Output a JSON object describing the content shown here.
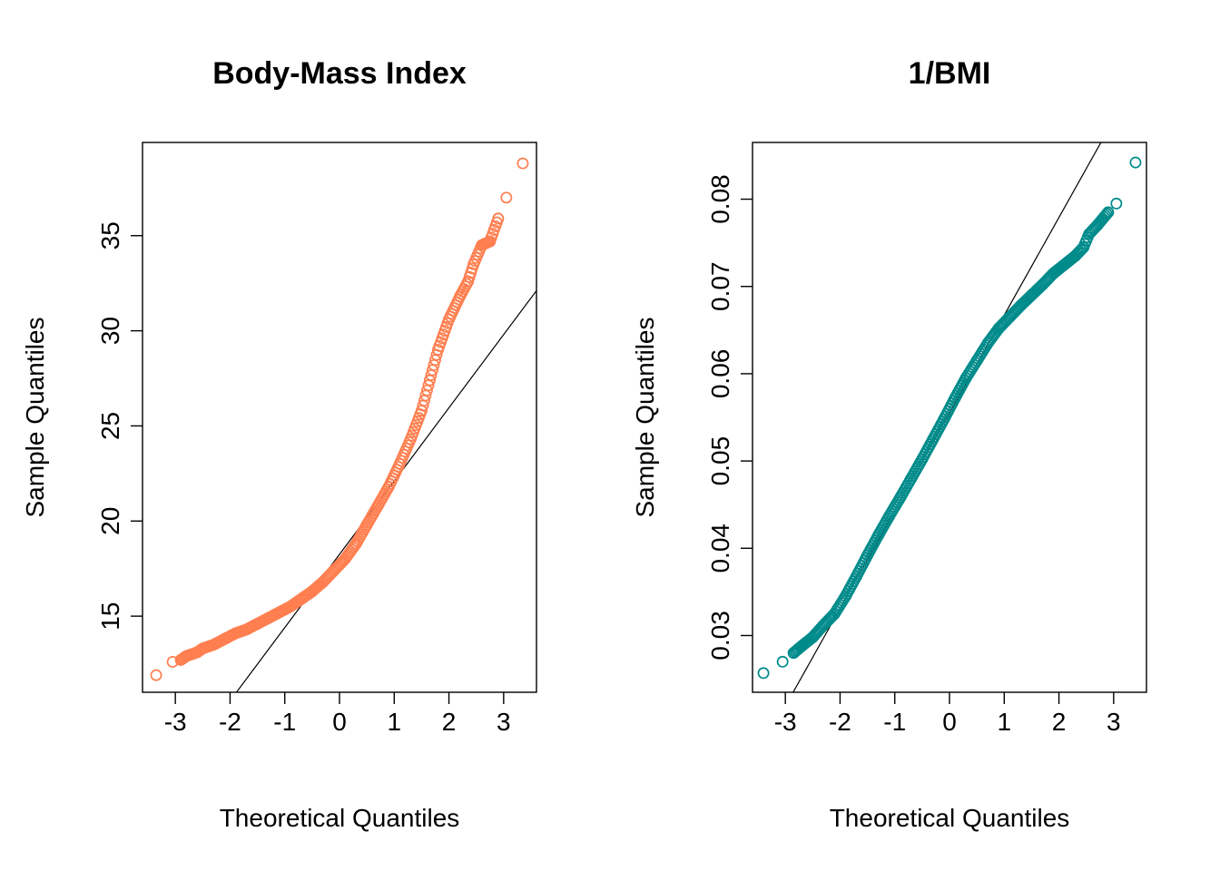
{
  "chart_data": [
    {
      "type": "scatter",
      "subtype": "qq-plot",
      "title": "Body-Mass Index",
      "xlabel": "Theoretical Quantiles",
      "ylabel": "Sample Quantiles",
      "xlim": [
        -3.6,
        3.6
      ],
      "ylim": [
        11.0,
        39.9
      ],
      "x_ticks": [
        -3,
        -2,
        -1,
        0,
        1,
        2,
        3
      ],
      "y_ticks": [
        15,
        20,
        25,
        30,
        35
      ],
      "color": "#FF7F50",
      "grid": false,
      "legend": "none",
      "reference_line": {
        "intercept": 18.25,
        "slope": 3.85
      },
      "quantile_points": [
        [
          -3.35,
          11.9
        ],
        [
          -3.05,
          12.6
        ],
        [
          -2.9,
          12.7
        ],
        [
          -2.8,
          12.9
        ],
        [
          -2.7,
          13.0
        ],
        [
          -2.6,
          13.1
        ],
        [
          -2.5,
          13.3
        ],
        [
          -2.3,
          13.5
        ],
        [
          -2.1,
          13.8
        ],
        [
          -1.9,
          14.1
        ],
        [
          -1.7,
          14.3
        ],
        [
          -1.5,
          14.6
        ],
        [
          -1.3,
          14.9
        ],
        [
          -1.1,
          15.2
        ],
        [
          -0.9,
          15.5
        ],
        [
          -0.7,
          15.9
        ],
        [
          -0.5,
          16.3
        ],
        [
          -0.3,
          16.8
        ],
        [
          -0.1,
          17.4
        ],
        [
          0.1,
          18.0
        ],
        [
          0.3,
          18.8
        ],
        [
          0.5,
          19.8
        ],
        [
          0.7,
          20.8
        ],
        [
          0.9,
          21.8
        ],
        [
          1.1,
          23.0
        ],
        [
          1.3,
          24.3
        ],
        [
          1.5,
          25.8
        ],
        [
          1.65,
          27.4
        ],
        [
          1.8,
          29.0
        ],
        [
          2.0,
          30.6
        ],
        [
          2.2,
          31.8
        ],
        [
          2.35,
          32.6
        ],
        [
          2.45,
          33.5
        ],
        [
          2.6,
          34.5
        ],
        [
          2.75,
          34.7
        ],
        [
          2.9,
          35.9
        ],
        [
          3.05,
          37.0
        ],
        [
          3.35,
          38.8
        ]
      ]
    },
    {
      "type": "scatter",
      "subtype": "qq-plot",
      "title": "1/BMI",
      "xlabel": "Theoretical Quantiles",
      "ylabel": "Sample Quantiles",
      "xlim": [
        -3.6,
        3.6
      ],
      "ylim": [
        0.0235,
        0.0865
      ],
      "x_ticks": [
        -3,
        -2,
        -1,
        0,
        1,
        2,
        3
      ],
      "y_ticks": [
        0.03,
        0.04,
        0.05,
        0.06,
        0.07,
        0.08
      ],
      "y_tick_labels": [
        "0.03",
        "0.04",
        "0.05",
        "0.06",
        "0.07",
        "0.08"
      ],
      "color": "#008B8B",
      "grid": false,
      "legend": "none",
      "reference_line": {
        "intercept": 0.0555,
        "slope": 0.0112
      },
      "quantile_points": [
        [
          -3.4,
          0.0257
        ],
        [
          -3.05,
          0.027
        ],
        [
          -2.85,
          0.028
        ],
        [
          -2.7,
          0.0288
        ],
        [
          -2.5,
          0.0298
        ],
        [
          -2.3,
          0.0312
        ],
        [
          -2.1,
          0.0325
        ],
        [
          -1.9,
          0.0345
        ],
        [
          -1.7,
          0.0368
        ],
        [
          -1.5,
          0.0392
        ],
        [
          -1.3,
          0.0415
        ],
        [
          -1.1,
          0.0437
        ],
        [
          -0.9,
          0.0458
        ],
        [
          -0.7,
          0.048
        ],
        [
          -0.5,
          0.0502
        ],
        [
          -0.3,
          0.0525
        ],
        [
          -0.1,
          0.0548
        ],
        [
          0.1,
          0.0572
        ],
        [
          0.3,
          0.0595
        ],
        [
          0.5,
          0.0615
        ],
        [
          0.7,
          0.0635
        ],
        [
          0.9,
          0.0652
        ],
        [
          1.1,
          0.0665
        ],
        [
          1.3,
          0.0678
        ],
        [
          1.5,
          0.069
        ],
        [
          1.7,
          0.0702
        ],
        [
          1.9,
          0.0715
        ],
        [
          2.1,
          0.0725
        ],
        [
          2.3,
          0.0735
        ],
        [
          2.45,
          0.0745
        ],
        [
          2.55,
          0.076
        ],
        [
          2.7,
          0.077
        ],
        [
          2.9,
          0.0785
        ],
        [
          3.05,
          0.0795
        ],
        [
          3.4,
          0.0842
        ]
      ]
    }
  ]
}
